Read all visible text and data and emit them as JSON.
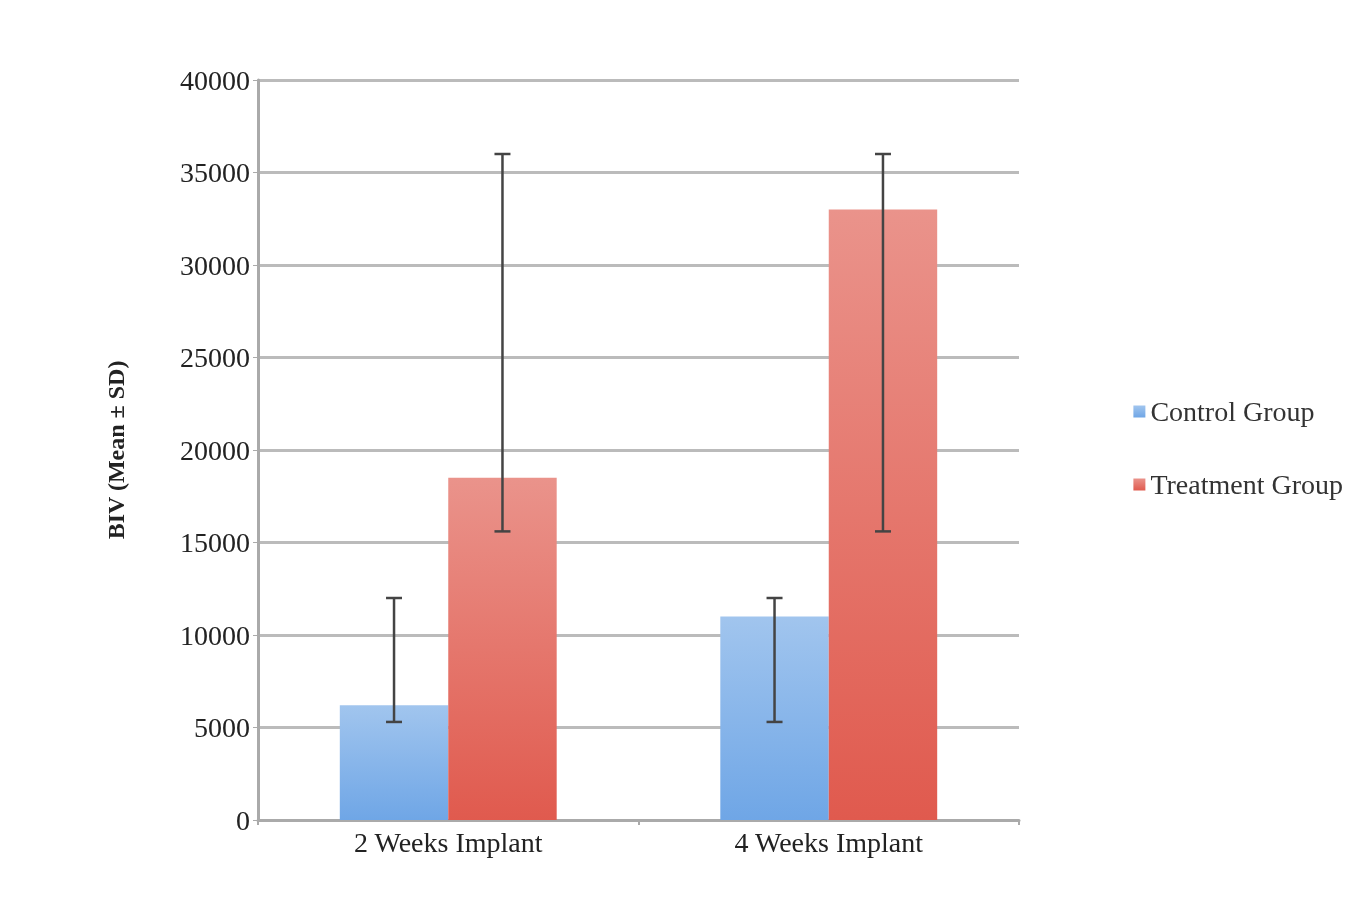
{
  "chart_data": {
    "type": "bar",
    "ylabel": "BIV (Mean ± SD)",
    "categories": [
      "2 Weeks Implant",
      "4 Weeks Implant"
    ],
    "series": [
      {
        "name": "Control Group",
        "color": "#6fa6e6",
        "values": [
          6200,
          11000
        ],
        "errors": [
          [
            5300,
            12000
          ],
          [
            5300,
            12000
          ]
        ]
      },
      {
        "name": "Treatment Group",
        "color": "#e05a4e",
        "values": [
          18500,
          33000
        ],
        "errors": [
          [
            15600,
            36000
          ],
          [
            15600,
            36000
          ]
        ]
      }
    ],
    "ylim": [
      0,
      40000
    ],
    "yticks": [
      0,
      5000,
      10000,
      15000,
      20000,
      25000,
      30000,
      35000,
      40000
    ],
    "grid": "y",
    "legend": "right"
  }
}
